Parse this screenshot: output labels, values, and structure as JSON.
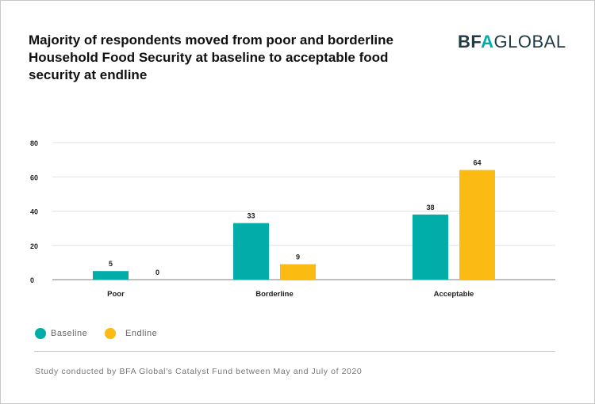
{
  "header": {
    "title": "Majority of respondents moved from poor and borderline Household Food Security at baseline to acceptable food security at endline",
    "logo_text": "BFAGLOBAL"
  },
  "chart_data": {
    "type": "bar",
    "title": "Majority of respondents moved from poor and borderline Household Food Security at baseline to acceptable food security at endline",
    "categories": [
      "Poor",
      "Borderline",
      "Acceptable"
    ],
    "series": [
      {
        "name": "Baseline",
        "values": [
          5,
          33,
          38
        ],
        "color": "#00ada8"
      },
      {
        "name": "Endline",
        "values": [
          0,
          9,
          64
        ],
        "color": "#fbbb12"
      }
    ],
    "ylim": [
      0,
      80
    ],
    "yticks": [
      0,
      20,
      40,
      60,
      80
    ],
    "grid": true,
    "legend_position": "bottom-left",
    "xlabel": "",
    "ylabel": ""
  },
  "footer": {
    "note": "Study conducted by BFA Global's Catalyst Fund between May and July of 2020"
  }
}
